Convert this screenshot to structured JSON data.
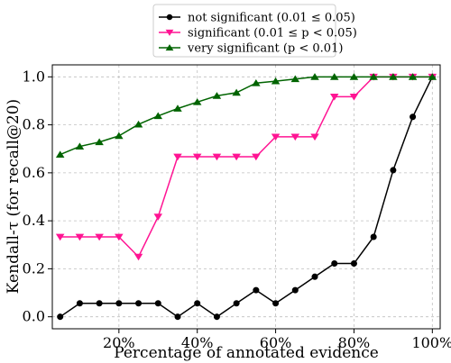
{
  "chart_data": {
    "type": "line",
    "xlabel": "Percentage of annotated evidence",
    "ylabel": "Kendall-τ (for recall@20)",
    "xlim": [
      0.03,
      1.02
    ],
    "ylim": [
      -0.05,
      1.05
    ],
    "x_ticks": [
      0.2,
      0.4,
      0.6,
      0.8,
      1.0
    ],
    "x_tick_labels": [
      "20%",
      "40%",
      "60%",
      "80%",
      "100%"
    ],
    "y_ticks": [
      0.0,
      0.2,
      0.4,
      0.6,
      0.8,
      1.0
    ],
    "y_tick_labels": [
      "0.0",
      "0.2",
      "0.4",
      "0.6",
      "0.8",
      "1.0"
    ],
    "grid": true,
    "legend_position": "top-center",
    "x": [
      0.05,
      0.1,
      0.15,
      0.2,
      0.25,
      0.3,
      0.35,
      0.4,
      0.45,
      0.5,
      0.55,
      0.6,
      0.65,
      0.7,
      0.75,
      0.8,
      0.85,
      0.9,
      0.95,
      1.0
    ],
    "series": [
      {
        "name": "not significant (0.01 ≤ 0.05)",
        "color": "#000000",
        "marker": "circle",
        "values": [
          0.0,
          0.056,
          0.056,
          0.056,
          0.056,
          0.056,
          0.0,
          0.056,
          0.0,
          0.056,
          0.111,
          0.056,
          0.111,
          0.167,
          0.222,
          0.222,
          0.333,
          0.611,
          0.833,
          1.0
        ]
      },
      {
        "name": "significant (0.01 ≤ p < 0.05)",
        "color": "#ff1493",
        "marker": "triangle-down",
        "values": [
          0.333,
          0.333,
          0.333,
          0.333,
          0.25,
          0.417,
          0.667,
          0.667,
          0.667,
          0.667,
          0.667,
          0.75,
          0.75,
          0.75,
          0.917,
          0.917,
          1.0,
          1.0,
          1.0,
          1.0
        ]
      },
      {
        "name": "very significant (p < 0.01)",
        "color": "#006400",
        "marker": "triangle-up",
        "values": [
          0.676,
          0.71,
          0.728,
          0.754,
          0.802,
          0.837,
          0.868,
          0.895,
          0.921,
          0.934,
          0.974,
          0.982,
          0.991,
          1.0,
          1.0,
          1.0,
          1.0,
          1.0,
          1.0,
          1.0
        ]
      }
    ]
  }
}
